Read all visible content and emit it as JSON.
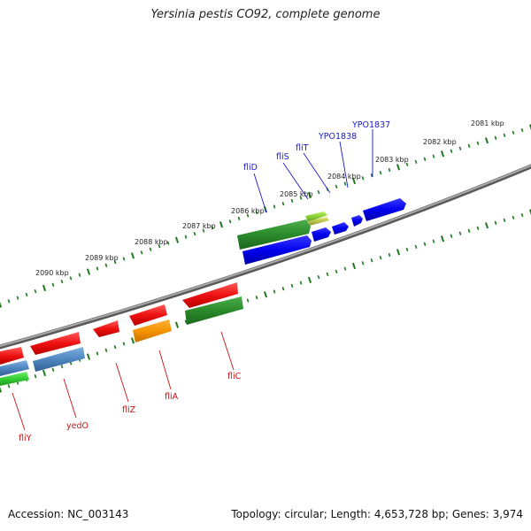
{
  "title": "Yersinia pestis CO92, complete genome",
  "footer": {
    "accession": "Accession: NC_003143",
    "summary": "Topology: circular; Length: 4,653,728 bp; Genes: 3,974"
  },
  "scale_labels": [
    "2081 kbp",
    "2082 kbp",
    "2083 kbp",
    "2084 kbp",
    "2085 kbp",
    "2086 kbp",
    "2087 kbp",
    "2088 kbp",
    "2089 kbp",
    "2090 kbp"
  ],
  "colors": {
    "forward_label": "#1a1acc",
    "reverse_label": "#cc1111",
    "tick": "#1e7a1e",
    "backbone": "#888888"
  },
  "forward_labels": [
    "fliD",
    "fliS",
    "fliT",
    "YPO1838",
    "YPO1837"
  ],
  "reverse_labels": [
    "fliY",
    "yedO",
    "fliZ",
    "fliA",
    "fliC"
  ]
}
